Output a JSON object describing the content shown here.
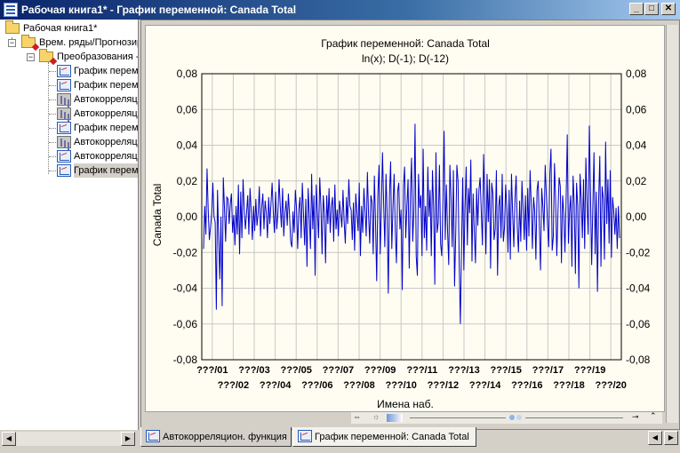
{
  "window": {
    "title": "Рабочая книга1* - График переменной: Canada Total",
    "minimize": "_",
    "maximize": "□",
    "close": "✕"
  },
  "tree": {
    "root": "Рабочая книга1*",
    "level1": "Врем. ряды/Прогнозирование",
    "level2": "Преобразования - Canada Total",
    "items": [
      {
        "label": "График переменной",
        "icon": "graph-icon"
      },
      {
        "label": "График переменной",
        "icon": "graph-icon"
      },
      {
        "label": "Автокорреляционная функция",
        "icon": "acf-icon"
      },
      {
        "label": "Автокорреляционная функция",
        "icon": "acf-icon"
      },
      {
        "label": "График переменной",
        "icon": "graph-icon"
      },
      {
        "label": "Автокорреляционная функция",
        "icon": "acf-icon"
      },
      {
        "label": "Автокорреляционная функция",
        "icon": "graph-icon"
      },
      {
        "label": "График переменной",
        "icon": "graph-icon"
      }
    ],
    "selected_index": 7
  },
  "tabs": [
    {
      "label": "Автокорреляцион. функция",
      "icon": "graph-icon",
      "active": false
    },
    {
      "label": "График переменной: Canada Total",
      "icon": "graph-icon",
      "active": true
    }
  ],
  "chart_data": {
    "type": "line",
    "title": "График переменной: Canada Total",
    "subtitle": "ln(x); D(-1); D(-12)",
    "xlabel": "Имена наб.",
    "ylabel": "Canada Total",
    "ylim": [
      -0.08,
      0.08
    ],
    "yticks": [
      "0,08",
      "0,06",
      "0,04",
      "0,02",
      "0,00",
      "-0,02",
      "-0,04",
      "-0,06",
      "-0,08"
    ],
    "xtick_labels_top": [
      "???/01",
      "???/03",
      "???/05",
      "???/07",
      "???/09",
      "???/11",
      "???/13",
      "???/15",
      "???/17",
      "???/19"
    ],
    "xtick_labels_bottom": [
      "???/02",
      "???/04",
      "???/06",
      "???/08",
      "???/10",
      "???/12",
      "???/14",
      "???/16",
      "???/18",
      "???/20"
    ],
    "grid": true,
    "line_color": "#0000cc",
    "series": [
      {
        "values": [
          -0.018,
          0.006,
          -0.01,
          0.027,
          0.004,
          -0.013,
          -0.006,
          0.002,
          0.019,
          0.0,
          -0.003,
          -0.052,
          0.015,
          -0.012,
          -0.035,
          0.0,
          -0.05,
          0.022,
          0.005,
          -0.014,
          0.011,
          0.01,
          -0.004,
          0.007,
          0.013,
          -0.009,
          0.001,
          -0.016,
          0.006,
          -0.01,
          0.018,
          -0.021,
          0.014,
          -0.012,
          0.021,
          0.004,
          -0.007,
          0.002,
          0.012,
          -0.01,
          0.016,
          0.003,
          -0.013,
          0.006,
          -0.008,
          0.01,
          -0.005,
          0.002,
          0.017,
          -0.011,
          0.005,
          0.013,
          -0.007,
          0.009,
          0.002,
          -0.012,
          0.011,
          -0.004,
          0.007,
          0.019,
          0.003,
          -0.009,
          0.014,
          -0.007,
          0.002,
          0.021,
          0.006,
          -0.006,
          0.016,
          -0.011,
          0.002,
          0.009,
          -0.005,
          0.013,
          0.001,
          -0.014,
          -0.017,
          0.003,
          -0.009,
          0.015,
          0.005,
          -0.018,
          0.004,
          0.011,
          -0.012,
          0.019,
          0.002,
          -0.016,
          0.01,
          -0.028,
          0.016,
          0.001,
          -0.018,
          0.024,
          -0.007,
          0.012,
          -0.033,
          0.018,
          0.003,
          -0.012,
          0.022,
          0.006,
          -0.021,
          0.012,
          0.002,
          -0.026,
          0.012,
          -0.004,
          0.016,
          -0.009,
          0.006,
          0.011,
          -0.014,
          0.018,
          -0.007,
          0.004,
          -0.011,
          0.009,
          0.002,
          -0.006,
          0.015,
          -0.003,
          -0.015,
          0.011,
          -0.004,
          0.021,
          0.006,
          0.004,
          -0.013,
          0.008,
          -0.019,
          0.013,
          0.002,
          -0.008,
          0.019,
          -0.022,
          0.006,
          -0.009,
          0.016,
          0.003,
          -0.011,
          0.025,
          0.001,
          -0.015,
          0.012,
          0.008,
          -0.021,
          0.023,
          -0.003,
          -0.036,
          0.012,
          0.029,
          -0.021,
          0.004,
          0.036,
          0.007,
          -0.017,
          0.024,
          0.001,
          -0.043,
          0.012,
          0.031,
          -0.018,
          0.005,
          0.024,
          -0.008,
          -0.026,
          0.014,
          0.019,
          -0.007,
          0.004,
          -0.041,
          0.017,
          0.028,
          -0.012,
          0.006,
          0.021,
          -0.029,
          0.012,
          0.033,
          -0.014,
          0.003,
          0.052,
          -0.022,
          -0.033,
          0.024,
          0.005,
          0.012,
          -0.022,
          0.038,
          -0.012,
          0.006,
          -0.019,
          0.028,
          0.0,
          0.015,
          -0.022,
          0.026,
          0.005,
          -0.038,
          0.036,
          -0.009,
          -0.003,
          0.029,
          -0.015,
          -0.022,
          0.008,
          0.048,
          -0.013,
          0.018,
          -0.008,
          -0.027,
          0.029,
          0.01,
          -0.017,
          0.026,
          -0.039,
          -0.01,
          0.029,
          0.02,
          -0.025,
          -0.06,
          -0.018,
          0.022,
          -0.03,
          0.005,
          0.028,
          -0.016,
          0.016,
          0.002,
          0.032,
          -0.025,
          0.013,
          -0.008,
          -0.026,
          0.016,
          -0.005,
          0.015,
          0.022,
          0.003,
          -0.016,
          0.035,
          0.01,
          -0.021,
          0.024,
          -0.003,
          0.021,
          -0.029,
          0.019,
          0.013,
          -0.013,
          -0.007,
          0.026,
          -0.033,
          0.006,
          0.012,
          -0.012,
          0.024,
          -0.014,
          -0.006,
          0.018,
          0.005,
          -0.02,
          0.015,
          -0.024,
          0.024,
          0.002,
          -0.017,
          0.01,
          0.023,
          -0.006,
          -0.02,
          0.009,
          -0.014,
          0.02,
          0.004,
          -0.013,
          0.012,
          -0.019,
          0.016,
          -0.011,
          0.026,
          0.007,
          -0.018,
          0.011,
          0.003,
          -0.024,
          0.015,
          0.02,
          -0.006,
          -0.03,
          0.016,
          0.006,
          -0.008,
          0.029,
          0.012,
          -0.004,
          -0.017,
          0.024,
          0.038,
          -0.019,
          -0.011,
          0.03,
          0.009,
          -0.022,
          0.003,
          0.022,
          0.017,
          -0.026,
          0.012,
          0.002,
          -0.02,
          0.009,
          0.046,
          -0.015,
          0.003,
          0.012,
          -0.028,
          0.023,
          0.007,
          -0.032,
          0.019,
          0.006,
          -0.04,
          0.024,
          0.01,
          -0.012,
          0.021,
          -0.018,
          0.033,
          0.008,
          -0.01,
          0.051,
          0.013,
          -0.027,
          0.006,
          0.036,
          -0.021,
          0.014,
          -0.042,
          0.009,
          0.034,
          -0.028,
          0.017,
          0.01,
          -0.024,
          0.042,
          -0.004,
          0.021,
          -0.015,
          0.026,
          -0.023,
          0.011,
          0.003,
          -0.01,
          0.005,
          -0.018,
          0.006,
          -0.012
        ]
      }
    ]
  }
}
